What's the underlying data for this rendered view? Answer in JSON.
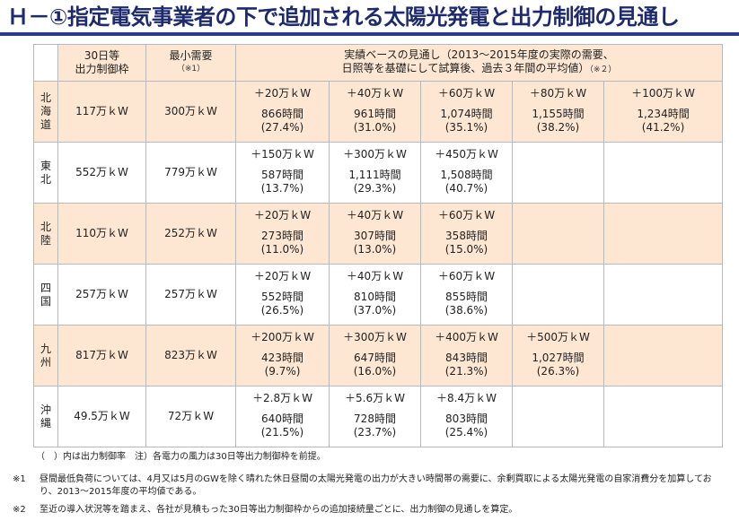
{
  "title": "Ｈ－①指定電気事業者の下で追加される太陽光発電と出力制御の見通し",
  "headers": {
    "col1_line1": "30日等",
    "col1_line2": "出力制御枠",
    "col2_line1": "最小需要",
    "col2_note": "（※1）",
    "col3_line1": "実績ベースの見通し（2013～2015年度の実際の需要、",
    "col3_line2": "日照等を基礎にして試算後、過去３年間の平均値）",
    "col3_note": "（※２）"
  },
  "rows": [
    {
      "region_chars": [
        "北",
        "海",
        "道"
      ],
      "cap": "117万ｋW",
      "demand": "300万ｋW",
      "cells": [
        {
          "add": "＋20万ｋW",
          "hours": "866時間",
          "pct": "(27.4%)"
        },
        {
          "add": "＋40万ｋW",
          "hours": "961時間",
          "pct": "(31.0%)"
        },
        {
          "add": "＋60万ｋW",
          "hours": "1,074時間",
          "pct": "(35.1%)"
        },
        {
          "add": "＋80万ｋW",
          "hours": "1,155時間",
          "pct": "(38.2%)"
        },
        {
          "add": "＋100万ｋW",
          "hours": "1,234時間",
          "pct": "(41.2%)"
        }
      ]
    },
    {
      "region_chars": [
        "東",
        "北"
      ],
      "cap": "552万ｋW",
      "demand": "779万ｋW",
      "cells": [
        {
          "add": "＋150万ｋW",
          "hours": "587時間",
          "pct": "(13.7%)"
        },
        {
          "add": "＋300万ｋW",
          "hours": "1,111時間",
          "pct": "(29.3%)"
        },
        {
          "add": "＋450万ｋW",
          "hours": "1,508時間",
          "pct": "(40.7%)"
        },
        {
          "add": "",
          "hours": "",
          "pct": ""
        },
        {
          "add": "",
          "hours": "",
          "pct": ""
        }
      ]
    },
    {
      "region_chars": [
        "北",
        "陸"
      ],
      "cap": "110万ｋW",
      "demand": "252万ｋW",
      "cells": [
        {
          "add": "＋20万ｋW",
          "hours": "273時間",
          "pct": "(11.0%)"
        },
        {
          "add": "＋40万ｋW",
          "hours": "307時間",
          "pct": "(13.0%)"
        },
        {
          "add": "＋60万ｋW",
          "hours": "358時間",
          "pct": "(15.0%)"
        },
        {
          "add": "",
          "hours": "",
          "pct": ""
        },
        {
          "add": "",
          "hours": "",
          "pct": ""
        }
      ]
    },
    {
      "region_chars": [
        "四",
        "国"
      ],
      "cap": "257万ｋW",
      "demand": "257万ｋW",
      "cells": [
        {
          "add": "＋20万ｋW",
          "hours": "552時間",
          "pct": "(26.5%)"
        },
        {
          "add": "＋40万ｋW",
          "hours": "810時間",
          "pct": "(37.0%)"
        },
        {
          "add": "＋60万ｋW",
          "hours": "855時間",
          "pct": "(38.6%)"
        },
        {
          "add": "",
          "hours": "",
          "pct": ""
        },
        {
          "add": "",
          "hours": "",
          "pct": ""
        }
      ]
    },
    {
      "region_chars": [
        "九",
        "州"
      ],
      "cap": "817万ｋW",
      "demand": "823万ｋW",
      "cells": [
        {
          "add": "＋200万ｋW",
          "hours": "423時間",
          "pct": "(9.7%)"
        },
        {
          "add": "＋300万ｋW",
          "hours": "647時間",
          "pct": "(16.0%)"
        },
        {
          "add": "＋400万ｋW",
          "hours": "843時間",
          "pct": "(21.3%)"
        },
        {
          "add": "＋500万ｋW",
          "hours": "1,027時間",
          "pct": "(26.3%)"
        },
        {
          "add": "",
          "hours": "",
          "pct": ""
        }
      ]
    },
    {
      "region_chars": [
        "沖",
        "縄"
      ],
      "cap": "49.5万ｋW",
      "demand": "72万ｋW",
      "cells": [
        {
          "add": "＋2.8万ｋW",
          "hours": "640時間",
          "pct": "(21.5%)"
        },
        {
          "add": "＋5.6万ｋW",
          "hours": "728時間",
          "pct": "(23.7%)"
        },
        {
          "add": "＋8.4万ｋW",
          "hours": "803時間",
          "pct": "(25.4%)"
        },
        {
          "add": "",
          "hours": "",
          "pct": ""
        },
        {
          "add": "",
          "hours": "",
          "pct": ""
        }
      ]
    }
  ],
  "legend": "（　）内は出力制御率　注）各電力の風力は30日等出力制御枠を前提。",
  "footnotes": [
    {
      "mark": "※1",
      "text": "昼間最低負荷については、4月又は5月のGWを除く晴れた休日昼間の太陽光発電の出力が大きい時間帯の需要に、余剰買取による太陽光発電の自家消費分を加算しており、2013～2015年度の平均値である。"
    },
    {
      "mark": "※2",
      "text": "至近の導入状況等を踏まえ、各社が見積もった30日等出力制御枠からの追加接続量ごとに、出力制御の見通しを算定。"
    }
  ]
}
